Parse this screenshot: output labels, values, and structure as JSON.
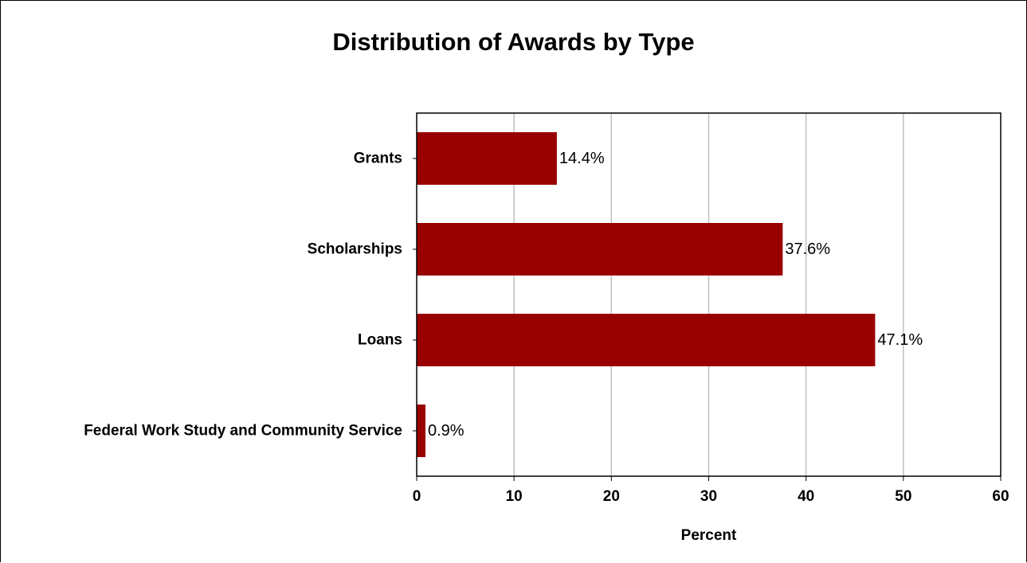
{
  "chart_data": {
    "type": "bar",
    "orientation": "horizontal",
    "title": "Distribution of Awards by Type",
    "xlabel": "Percent",
    "ylabel": "",
    "categories": [
      "Grants",
      "Scholarships",
      "Loans",
      "Federal Work Study and Community Service"
    ],
    "values": [
      14.4,
      37.6,
      47.1,
      0.9
    ],
    "data_labels": [
      "14.4%",
      "37.6%",
      "47.1%",
      "0.9%"
    ],
    "xlim": [
      0,
      60
    ],
    "xticks": [
      0,
      10,
      20,
      30,
      40,
      50,
      60
    ],
    "bar_color": "#990000",
    "grid": true,
    "gridline_color": "#c0c0c0",
    "legend": "none"
  }
}
